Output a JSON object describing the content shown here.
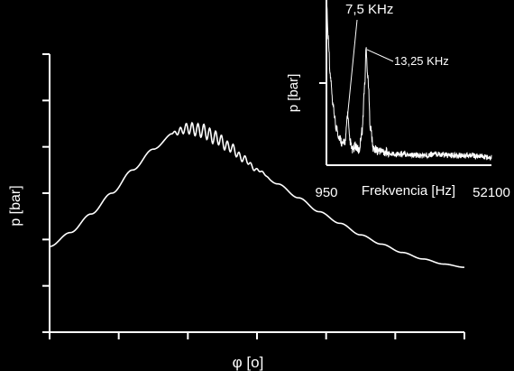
{
  "chart_data": [
    {
      "type": "line",
      "title": "",
      "xlabel": "φ [o]",
      "ylabel": "p [bar]",
      "x_ticks": [
        "",
        "",
        "",
        "",
        "",
        "",
        ""
      ],
      "y_ticks": [
        "",
        "",
        "",
        "",
        "",
        "",
        ""
      ],
      "xlim": [
        0,
        6
      ],
      "ylim": [
        0,
        6
      ],
      "grid": false,
      "legend": "none",
      "series": [
        {
          "x": [
            0,
            0.3,
            0.6,
            0.9,
            1.2,
            1.5,
            1.8,
            2.0,
            2.2,
            2.4,
            2.6,
            2.8,
            3.0,
            3.3,
            3.6,
            3.9,
            4.2,
            4.5,
            4.8,
            5.1,
            5.4,
            5.7,
            6.0
          ],
          "y": [
            1.85,
            2.15,
            2.55,
            3.0,
            3.5,
            3.95,
            4.3,
            4.4,
            4.35,
            4.2,
            4.0,
            3.75,
            3.5,
            3.2,
            2.9,
            2.6,
            2.35,
            2.1,
            1.9,
            1.72,
            1.58,
            1.47,
            1.4
          ],
          "ripple": {
            "from": 1.75,
            "to": 3.2,
            "amplitude": 0.18,
            "period": 0.085
          }
        }
      ]
    },
    {
      "type": "line",
      "title": "",
      "xlabel": "Frekvencia [Hz]",
      "ylabel": "p [bar]",
      "x_ticks": [
        "950",
        "52100"
      ],
      "xlim": [
        950,
        52100
      ],
      "ylim": [
        0,
        1
      ],
      "grid": false,
      "legend": "none",
      "annotations": [
        {
          "text": "7,5 KHz",
          "x": 7500
        },
        {
          "text": "13,25 KHz",
          "x": 13250
        }
      ],
      "series": [
        {
          "x": [
            950,
            1500,
            2200,
            3000,
            4000,
            5000,
            6000,
            6800,
            7500,
            8200,
            9000,
            10000,
            11000,
            12000,
            12800,
            13250,
            13800,
            14600,
            15500,
            17000,
            20000,
            25000,
            30000,
            35000,
            40000,
            45000,
            52100
          ],
          "y": [
            1.0,
            0.75,
            0.5,
            0.32,
            0.2,
            0.14,
            0.1,
            0.12,
            0.28,
            0.12,
            0.06,
            0.09,
            0.06,
            0.18,
            0.45,
            0.68,
            0.5,
            0.2,
            0.07,
            0.06,
            0.05,
            0.05,
            0.04,
            0.05,
            0.04,
            0.04,
            0.03
          ]
        }
      ]
    }
  ]
}
